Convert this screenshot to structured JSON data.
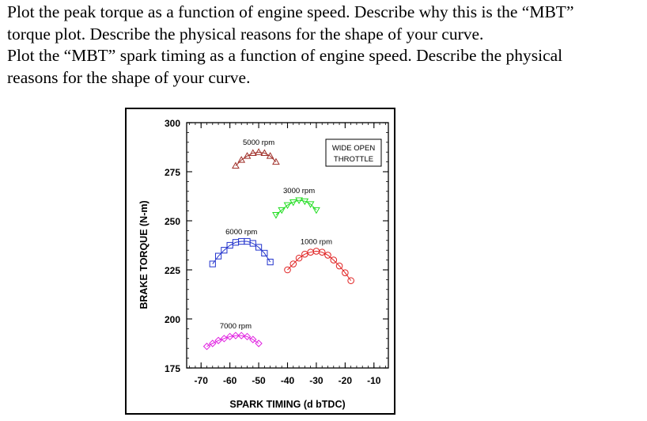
{
  "question": {
    "line1": "Plot the peak torque as a function of engine speed. Describe why this is the “MBT”",
    "line2": "torque plot. Describe the physical reasons for the shape of your curve.",
    "line3": "Plot the “MBT” spark timing as a function of engine speed. Describe the physical",
    "line4": "reasons for the shape of your curve."
  },
  "chart_data": {
    "type": "scatter",
    "title": "",
    "xlabel": "SPARK TIMING (d bTDC)",
    "ylabel": "BRAKE TORQUE (N-m)",
    "xlim": [
      -75,
      -5
    ],
    "ylim": [
      175,
      300
    ],
    "xticks": [
      -70,
      -60,
      -50,
      -40,
      -30,
      -20,
      -10
    ],
    "yticks": [
      175,
      200,
      225,
      250,
      275,
      300
    ],
    "annotation": [
      "WIDE OPEN",
      "THROTTLE"
    ],
    "grid": false,
    "series": [
      {
        "name": "5000 rpm",
        "marker": "triangle-up",
        "color": "#a0302a",
        "points": [
          [
            -58,
            278
          ],
          [
            -56,
            281
          ],
          [
            -54,
            283
          ],
          [
            -52,
            284.5
          ],
          [
            -50,
            285
          ],
          [
            -48,
            284.5
          ],
          [
            -46,
            283
          ],
          [
            -44,
            280
          ]
        ]
      },
      {
        "name": "3000 rpm",
        "marker": "triangle-down",
        "color": "#22dd22",
        "points": [
          [
            -44,
            253
          ],
          [
            -42,
            255.5
          ],
          [
            -40,
            258
          ],
          [
            -38,
            259.5
          ],
          [
            -36,
            260.5
          ],
          [
            -34,
            260
          ],
          [
            -32,
            258.5
          ],
          [
            -30,
            255.5
          ]
        ]
      },
      {
        "name": "6000 rpm",
        "marker": "square",
        "color": "#2233cc",
        "points": [
          [
            -66,
            228
          ],
          [
            -64,
            232
          ],
          [
            -62,
            235
          ],
          [
            -60,
            237.5
          ],
          [
            -58,
            239
          ],
          [
            -56,
            239.5
          ],
          [
            -54,
            239.5
          ],
          [
            -52,
            238.5
          ],
          [
            -50,
            236.5
          ],
          [
            -48,
            233.5
          ],
          [
            -46,
            229
          ]
        ]
      },
      {
        "name": "1000 rpm",
        "marker": "circle",
        "color": "#e02020",
        "points": [
          [
            -40,
            225
          ],
          [
            -38,
            228
          ],
          [
            -36,
            231
          ],
          [
            -34,
            233
          ],
          [
            -32,
            234
          ],
          [
            -30,
            234.5
          ],
          [
            -28,
            234
          ],
          [
            -26,
            232.5
          ],
          [
            -24,
            230
          ],
          [
            -22,
            227
          ],
          [
            -20,
            223.5
          ],
          [
            -18,
            219.5
          ]
        ]
      },
      {
        "name": "7000 rpm",
        "marker": "diamond",
        "color": "#e020e0",
        "points": [
          [
            -68,
            186
          ],
          [
            -66,
            187.5
          ],
          [
            -64,
            189
          ],
          [
            -62,
            190
          ],
          [
            -60,
            191
          ],
          [
            -58,
            191.5
          ],
          [
            -56,
            191.5
          ],
          [
            -54,
            191
          ],
          [
            -52,
            189.5
          ],
          [
            -50,
            187.5
          ]
        ]
      }
    ]
  }
}
